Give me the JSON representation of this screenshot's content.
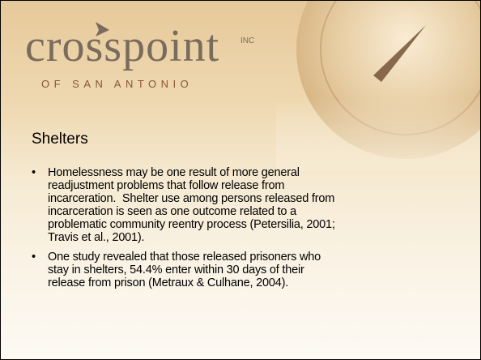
{
  "logo": {
    "name": "crosspoint",
    "suffix": "INC",
    "tagline": "OF SAN ANTONIO"
  },
  "title": "Shelters",
  "bullets": [
    {
      "lines": [
        "Homelessness may be one result of more general",
        "readjustment problems that follow release from",
        "incarceration.  Shelter use among persons released from",
        "incarceration is seen as one outcome related to a",
        "problematic community reentry process (Petersilia, 2001;",
        "Travis et al., 2001)."
      ]
    },
    {
      "lines": [
        "One study revealed that those released prisoners who",
        "stay in shelters, 54.4% enter within 30 days of their",
        "release from prison (Metraux & Culhane, 2004)."
      ]
    }
  ]
}
